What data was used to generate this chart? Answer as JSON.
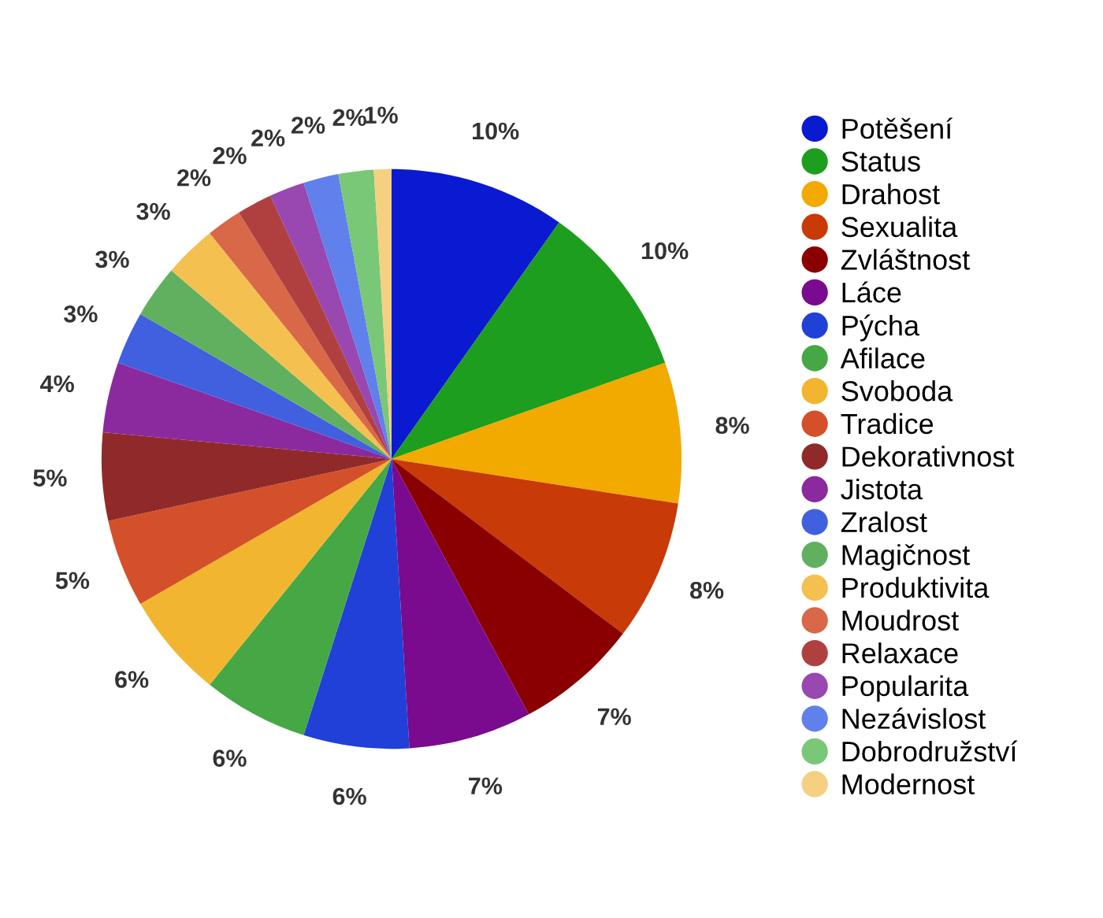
{
  "chart_data": {
    "type": "pie",
    "categories": [
      "Potěšení",
      "Status",
      "Drahost",
      "Sexualita",
      "Zvláštnost",
      "Láce",
      "Pýcha",
      "Afilace",
      "Svoboda",
      "Tradice",
      "Dekorativnost",
      "Jistota",
      "Zralost",
      "Magičnost",
      "Produktivita",
      "Moudrost",
      "Relaxace",
      "Popularita",
      "Nezávislost",
      "Dobrodružství",
      "Modernost"
    ],
    "values": [
      10,
      10,
      8,
      8,
      7,
      7,
      6,
      6,
      6,
      5,
      5,
      4,
      3,
      3,
      3,
      2,
      2,
      2,
      2,
      2,
      1
    ],
    "value_labels": [
      "10%",
      "10%",
      "8%",
      "8%",
      "7%",
      "7%",
      "6%",
      "6%",
      "6%",
      "5%",
      "5%",
      "4%",
      "3%",
      "3%",
      "3%",
      "2%",
      "2%",
      "2%",
      "2%",
      "2%",
      "1%"
    ],
    "colors": [
      "#0a1ad0",
      "#1e9e1e",
      "#f2a900",
      "#c83a08",
      "#8a0000",
      "#7a0a8e",
      "#2040d8",
      "#45a845",
      "#f2b530",
      "#d4502a",
      "#902a2a",
      "#8a2a9e",
      "#4060e0",
      "#60b060",
      "#f4c050",
      "#d86848",
      "#b04040",
      "#9848b0",
      "#6080ec",
      "#78c878",
      "#f4d080"
    ],
    "legend": "right"
  }
}
